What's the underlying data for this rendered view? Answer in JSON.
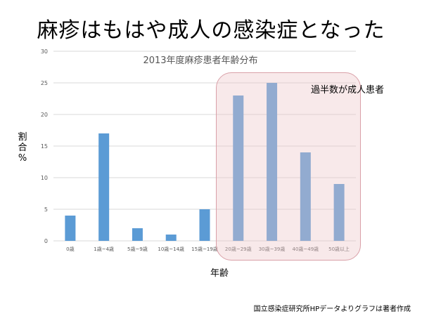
{
  "slide": {
    "title": "麻疹はもはや成人の感染症となった",
    "highlight_label": "過半数が成人患者",
    "source": "国立感染症研究所HPデータよりグラフは著者作成"
  },
  "chart_data": {
    "type": "bar",
    "title": "2013年度麻疹患者年齢分布",
    "xlabel": "年齢",
    "ylabel_chars": [
      "割",
      "合",
      "%"
    ],
    "categories": [
      "0歳",
      "1歳~4歳",
      "5歳~9歳",
      "10歳~14歳",
      "15歳~19歳",
      "20歳~29歳",
      "30歳~39歳",
      "40歳~49歳",
      "50歳以上"
    ],
    "values": [
      4,
      17,
      2,
      1,
      5,
      23,
      25,
      14,
      9
    ],
    "ylim": [
      0,
      30
    ],
    "yticks": [
      0,
      5,
      10,
      15,
      20,
      25,
      30
    ],
    "grid": true,
    "bar_color": "#5b9bd5",
    "highlight_color": "#f2c7cc"
  }
}
